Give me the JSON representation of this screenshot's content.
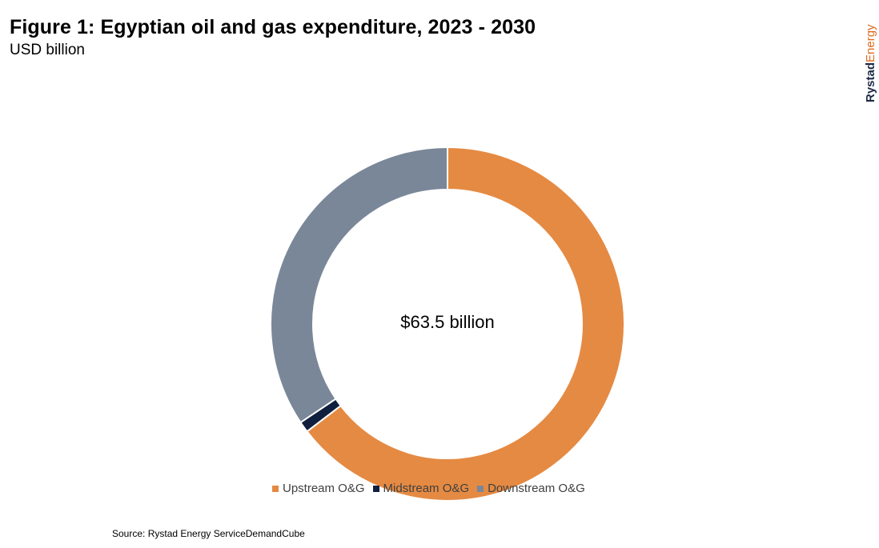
{
  "header": {
    "title": "Figure 1: Egyptian oil and gas expenditure, 2023 - 2030",
    "subtitle": "USD billion"
  },
  "brand": {
    "part1": "Rystad",
    "part2": "Energy"
  },
  "footer": {
    "source": "Source: Rystad Energy ServiceDemandCube"
  },
  "colors": {
    "upstream": "#e58a43",
    "midstream": "#0f1f3d",
    "downstream": "#7a8798",
    "brand_dark": "#1b2a44",
    "brand_accent": "#e06b20"
  },
  "chart_data": {
    "type": "pie",
    "variant": "donut",
    "center_label": "$63.5 billion",
    "legend_position": "bottom",
    "start_angle_deg": 0,
    "direction": "clockwise",
    "series": [
      {
        "name": "Upstream O&G",
        "share": 0.646,
        "color": "#e58a43"
      },
      {
        "name": "Midstream O&G",
        "share": 0.01,
        "color": "#0f1f3d"
      },
      {
        "name": "Downstream O&G",
        "share": 0.344,
        "color": "#7a8798"
      }
    ]
  }
}
